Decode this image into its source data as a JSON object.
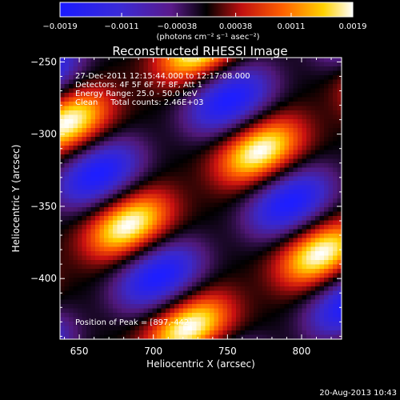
{
  "chart_data": {
    "type": "heatmap",
    "title": "Reconstructed RHESSI Image",
    "xlabel": "Heliocentric X (arcsec)",
    "ylabel": "Heliocentric Y (arcsec)",
    "xlim": [
      637,
      827
    ],
    "ylim": [
      -442,
      -247
    ],
    "xticks": [
      650,
      700,
      750,
      800
    ],
    "xtick_labels": [
      "650",
      "700",
      "750",
      "800"
    ],
    "yticks": [
      -250,
      -300,
      -350,
      -400
    ],
    "ytick_labels": [
      "−250",
      "−300",
      "−350",
      "−400"
    ],
    "colorbar": {
      "colormap": "hot (black-blue-purple negative, black-red-yellow-white positive)",
      "range": [
        -0.0019,
        0.0019
      ],
      "ticks": [
        -0.0019,
        -0.0011,
        -0.00038,
        0.00038,
        0.0011,
        0.0019
      ],
      "tick_labels": [
        "−0.0019",
        "−0.0011",
        "−0.00038",
        "0.00038",
        "0.0011",
        "0.0019"
      ],
      "units_label": "(photons cm⁻² s⁻¹ asec⁻²)"
    },
    "annotations": [
      "27-Dec-2011 12:15:44.000 to 12:17:08.000",
      "Detectors: 4F 5F 6F 7F 8F, Att 1",
      "Energy Range: 25.0 - 50.0 keV",
      "Clean     Total counts: 2.46E+03"
    ],
    "peak_label": "Position of Peak = [897,-442]",
    "timestamp": "20-Aug-2013 10:43",
    "pattern": {
      "description": "diagonal fringe pattern of alternating positive (yellow) and negative (blue) lobes",
      "fringe_period_arcsec": 82,
      "fringe_angle_deg": -60
    }
  }
}
